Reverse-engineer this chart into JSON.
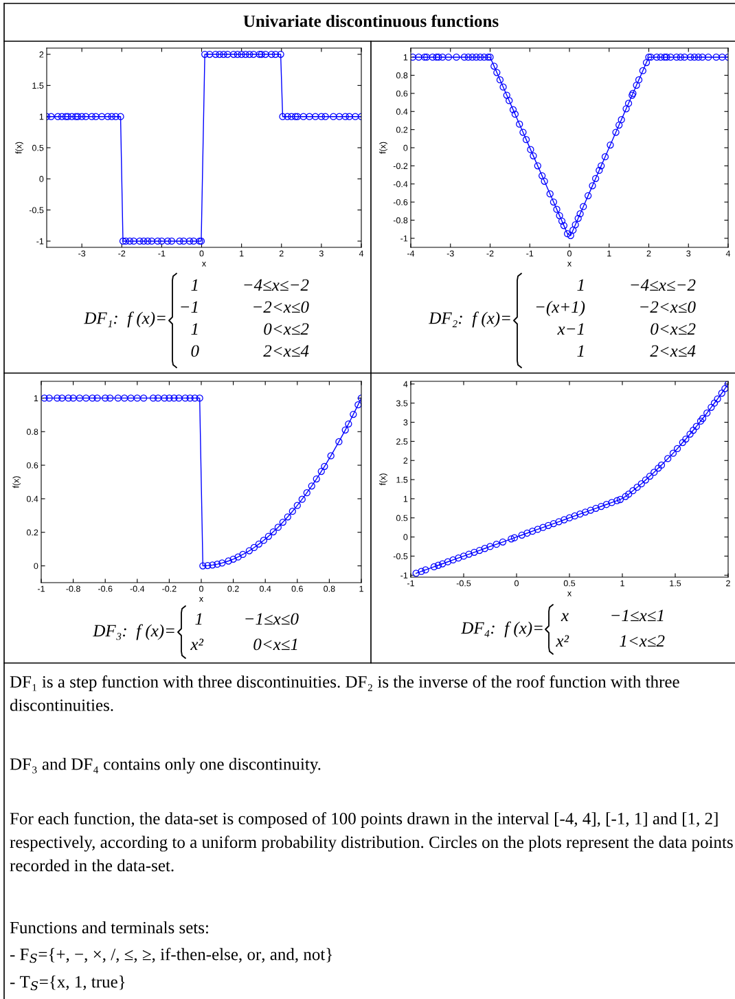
{
  "chart_data": [
    {
      "type": "line",
      "xlabel": "x",
      "ylabel": "f(x)",
      "marker": "circle",
      "line_style": "solid",
      "xlim": [
        -3.88,
        4
      ],
      "ylim": [
        -1.1,
        2.1
      ],
      "xticks": [
        -3,
        -2,
        -1,
        0,
        1,
        2,
        3,
        4
      ],
      "yticks": [
        -1,
        -0.5,
        0,
        0.5,
        1,
        1.5,
        2
      ],
      "series": [
        {
          "color": "#0000ff",
          "x": [
            -3.88,
            -3.77,
            -3.6,
            -3.5,
            -3.4,
            -3.35,
            -3.25,
            -3.15,
            -3.1,
            -3.0,
            -2.9,
            -2.75,
            -2.65,
            -2.5,
            -2.35,
            -2.25,
            -2.15,
            -2.03,
            -1.97,
            -1.9,
            -1.8,
            -1.7,
            -1.55,
            -1.45,
            -1.35,
            -1.25,
            -1.1,
            -1.0,
            -0.85,
            -0.75,
            -0.55,
            -0.45,
            -0.3,
            -0.2,
            -0.05,
            -0.01,
            0.08,
            0.2,
            0.35,
            0.45,
            0.55,
            0.65,
            0.8,
            0.9,
            1.0,
            1.1,
            1.2,
            1.3,
            1.45,
            1.5,
            1.6,
            1.75,
            1.85,
            1.98,
            2.03,
            2.15,
            2.25,
            2.35,
            2.4,
            2.55,
            2.7,
            2.85,
            3.0,
            3.1,
            3.3,
            3.45,
            3.6,
            3.7,
            3.85,
            4.0
          ],
          "values": [
            1,
            1,
            1,
            1,
            1,
            1,
            1,
            1,
            1,
            1,
            1,
            1,
            1,
            1,
            1,
            1,
            1,
            1,
            -1,
            -1,
            -1,
            -1,
            -1,
            -1,
            -1,
            -1,
            -1,
            -1,
            -1,
            -1,
            -1,
            -1,
            -1,
            -1,
            -1,
            -1,
            2,
            2,
            2,
            2,
            2,
            2,
            2,
            2,
            2,
            2,
            2,
            2,
            2,
            2,
            2,
            2,
            2,
            2,
            1,
            1,
            1,
            1,
            1,
            1,
            1,
            1,
            1,
            1,
            1,
            1,
            1,
            1,
            1,
            1
          ]
        }
      ],
      "annotations": [
        "DF₁:  f (x)=",
        "1",
        "−4≤x≤−2",
        "−1",
        "−2<x≤0",
        "1",
        "0<x≤2",
        "0",
        "2<x≤4"
      ]
    },
    {
      "type": "line",
      "xlabel": "x",
      "ylabel": "f(x)",
      "marker": "circle",
      "line_style": "solid",
      "xlim": [
        -4,
        4
      ],
      "ylim": [
        -1.1,
        1.1
      ],
      "xticks": [
        -4,
        -3,
        -2,
        -1,
        0,
        1,
        2,
        3,
        4
      ],
      "yticks": [
        -1,
        -0.8,
        -0.6,
        -0.4,
        -0.2,
        0,
        0.2,
        0.4,
        0.6,
        0.8,
        1
      ],
      "series": [
        {
          "color": "#0000ff",
          "x": [
            -3.95,
            -3.8,
            -3.65,
            -3.6,
            -3.45,
            -3.35,
            -3.3,
            -3.2,
            -3.05,
            -2.85,
            -2.65,
            -2.55,
            -2.45,
            -2.35,
            -2.25,
            -2.15,
            -2.05,
            -2.0,
            -1.9,
            -1.83,
            -1.75,
            -1.67,
            -1.58,
            -1.52,
            -1.42,
            -1.37,
            -1.26,
            -1.17,
            -1.09,
            -0.98,
            -0.91,
            -0.8,
            -0.69,
            -0.63,
            -0.49,
            -0.4,
            -0.32,
            -0.25,
            -0.19,
            -0.14,
            -0.05,
            0.03,
            0.09,
            0.15,
            0.22,
            0.27,
            0.35,
            0.47,
            0.58,
            0.66,
            0.75,
            0.8,
            0.9,
            1.03,
            1.17,
            1.25,
            1.31,
            1.43,
            1.49,
            1.58,
            1.6,
            1.69,
            1.75,
            1.85,
            1.94,
            2.0,
            2.05,
            2.2,
            2.3,
            2.4,
            2.45,
            2.55,
            2.7,
            2.8,
            2.9,
            3.05,
            3.15,
            3.25,
            3.35,
            3.5,
            3.7,
            3.85,
            4.0
          ],
          "values": [
            1,
            1,
            1,
            1,
            1,
            1,
            1,
            1,
            1,
            1,
            1,
            1,
            1,
            1,
            1,
            1,
            1,
            1,
            0.9,
            0.83,
            0.75,
            0.67,
            0.58,
            0.52,
            0.42,
            0.37,
            0.26,
            0.17,
            0.09,
            -0.02,
            -0.09,
            -0.2,
            -0.31,
            -0.37,
            -0.51,
            -0.6,
            -0.68,
            -0.75,
            -0.81,
            -0.86,
            -0.95,
            -0.97,
            -0.91,
            -0.85,
            -0.78,
            -0.73,
            -0.65,
            -0.53,
            -0.42,
            -0.34,
            -0.25,
            -0.2,
            -0.1,
            0.03,
            0.17,
            0.25,
            0.31,
            0.43,
            0.49,
            0.58,
            0.6,
            0.69,
            0.75,
            0.85,
            0.94,
            1,
            1,
            1,
            1,
            1,
            1,
            1,
            1,
            1,
            1,
            1,
            1,
            1,
            1,
            1,
            1,
            1,
            1
          ]
        }
      ],
      "annotations": [
        "DF₂:  f (x)=",
        "1",
        "−4≤x≤−2",
        "−(x+1)",
        "−2<x≤0",
        "x−1",
        "0<x≤2",
        "1",
        "2<x≤4"
      ]
    },
    {
      "type": "line",
      "xlabel": "x",
      "ylabel": "f(x)",
      "marker": "circle",
      "line_style": "solid",
      "xlim": [
        -1,
        1
      ],
      "ylim": [
        -0.1,
        1.1
      ],
      "xticks": [
        -1,
        -0.8,
        -0.6,
        -0.4,
        -0.2,
        0,
        0.2,
        0.4,
        0.6,
        0.8,
        1
      ],
      "yticks": [
        0,
        0.2,
        0.4,
        0.6,
        0.8,
        1
      ],
      "series": [
        {
          "color": "#0000ff",
          "x": [
            -0.98,
            -0.95,
            -0.9,
            -0.87,
            -0.83,
            -0.8,
            -0.76,
            -0.72,
            -0.68,
            -0.65,
            -0.6,
            -0.57,
            -0.52,
            -0.48,
            -0.44,
            -0.4,
            -0.36,
            -0.3,
            -0.27,
            -0.23,
            -0.2,
            -0.17,
            -0.14,
            -0.1,
            -0.07,
            -0.04,
            -0.01,
            0.01,
            0.04,
            0.07,
            0.1,
            0.13,
            0.17,
            0.2,
            0.23,
            0.26,
            0.3,
            0.33,
            0.36,
            0.39,
            0.42,
            0.45,
            0.48,
            0.51,
            0.54,
            0.57,
            0.6,
            0.63,
            0.66,
            0.69,
            0.72,
            0.75,
            0.77,
            0.81,
            0.86,
            0.9,
            0.92,
            0.95,
            0.98,
            1.0
          ],
          "values": [
            1,
            1,
            1,
            1,
            1,
            1,
            1,
            1,
            1,
            1,
            1,
            1,
            1,
            1,
            1,
            1,
            1,
            1,
            1,
            1,
            1,
            1,
            1,
            1,
            1,
            1,
            1,
            0,
            0.002,
            0.005,
            0.01,
            0.017,
            0.029,
            0.04,
            0.053,
            0.068,
            0.09,
            0.109,
            0.13,
            0.152,
            0.176,
            0.203,
            0.23,
            0.26,
            0.292,
            0.325,
            0.36,
            0.397,
            0.436,
            0.476,
            0.518,
            0.563,
            0.593,
            0.656,
            0.74,
            0.81,
            0.846,
            0.903,
            0.96,
            1
          ]
        }
      ],
      "annotations": [
        "DF₃:  f (x)=",
        "1",
        "−1≤x≤0",
        "x²",
        "0<x≤1"
      ]
    },
    {
      "type": "line",
      "xlabel": "x",
      "ylabel": "f(x)",
      "marker": "circle",
      "line_style": "solid",
      "xlim": [
        -1,
        2
      ],
      "ylim": [
        -1.05,
        4.07
      ],
      "xticks": [
        -1,
        -0.5,
        0,
        0.5,
        1,
        1.5,
        2
      ],
      "yticks": [
        -1,
        -0.5,
        0,
        0.5,
        1,
        1.5,
        2,
        2.5,
        3,
        3.5,
        4
      ],
      "series": [
        {
          "color": "#0000ff",
          "x": [
            -0.95,
            -0.9,
            -0.86,
            -0.78,
            -0.74,
            -0.7,
            -0.65,
            -0.6,
            -0.55,
            -0.5,
            -0.45,
            -0.4,
            -0.35,
            -0.3,
            -0.25,
            -0.19,
            -0.13,
            -0.05,
            -0.02,
            0.05,
            0.1,
            0.15,
            0.2,
            0.25,
            0.3,
            0.35,
            0.4,
            0.45,
            0.5,
            0.55,
            0.6,
            0.65,
            0.7,
            0.75,
            0.8,
            0.85,
            0.9,
            0.95,
            0.98,
            1.03,
            1.06,
            1.1,
            1.14,
            1.18,
            1.22,
            1.26,
            1.3,
            1.34,
            1.37,
            1.43,
            1.48,
            1.52,
            1.57,
            1.6,
            1.64,
            1.67,
            1.7,
            1.74,
            1.76,
            1.8,
            1.84,
            1.87,
            1.9,
            1.94,
            1.97,
            2.0
          ],
          "values": [
            -0.95,
            -0.9,
            -0.86,
            -0.78,
            -0.74,
            -0.7,
            -0.65,
            -0.6,
            -0.55,
            -0.5,
            -0.45,
            -0.4,
            -0.35,
            -0.3,
            -0.25,
            -0.19,
            -0.13,
            -0.05,
            -0.02,
            0.05,
            0.1,
            0.15,
            0.2,
            0.25,
            0.3,
            0.35,
            0.4,
            0.45,
            0.5,
            0.55,
            0.6,
            0.65,
            0.7,
            0.75,
            0.8,
            0.85,
            0.9,
            0.95,
            0.98,
            1.06,
            1.12,
            1.21,
            1.3,
            1.39,
            1.49,
            1.59,
            1.69,
            1.8,
            1.88,
            2.05,
            2.19,
            2.31,
            2.47,
            2.56,
            2.69,
            2.79,
            2.89,
            3.03,
            3.1,
            3.24,
            3.39,
            3.5,
            3.61,
            3.76,
            3.88,
            4
          ]
        }
      ],
      "annotations": [
        "DF₄:  f (x)=",
        "x",
        "−1≤x≤1",
        "x²",
        "1<x≤2"
      ]
    },
    {
      "type": "other",
      "title": "Univariate discontinuous functions",
      "annotations": [
        "DF₁ is a step function with three discontinuities. DF₂ is the inverse of the roof function with three discontinuities.",
        "DF₃ and DF₄ contains only one discontinuity.",
        "For each function, the data-set is composed of 100 points drawn in the interval [-4, 4], [-1, 1] and [1, 2] respectively, according to a uniform probability distribution. Circles on the plots represent the data points recorded in the data-set.",
        "Functions and terminals sets:",
        "- F$_{S}$={+, −, ×, /, ≤, ≥, if-then-else, or, and, not}",
        "- T$_{S}$={x, 1, true}"
      ]
    }
  ]
}
